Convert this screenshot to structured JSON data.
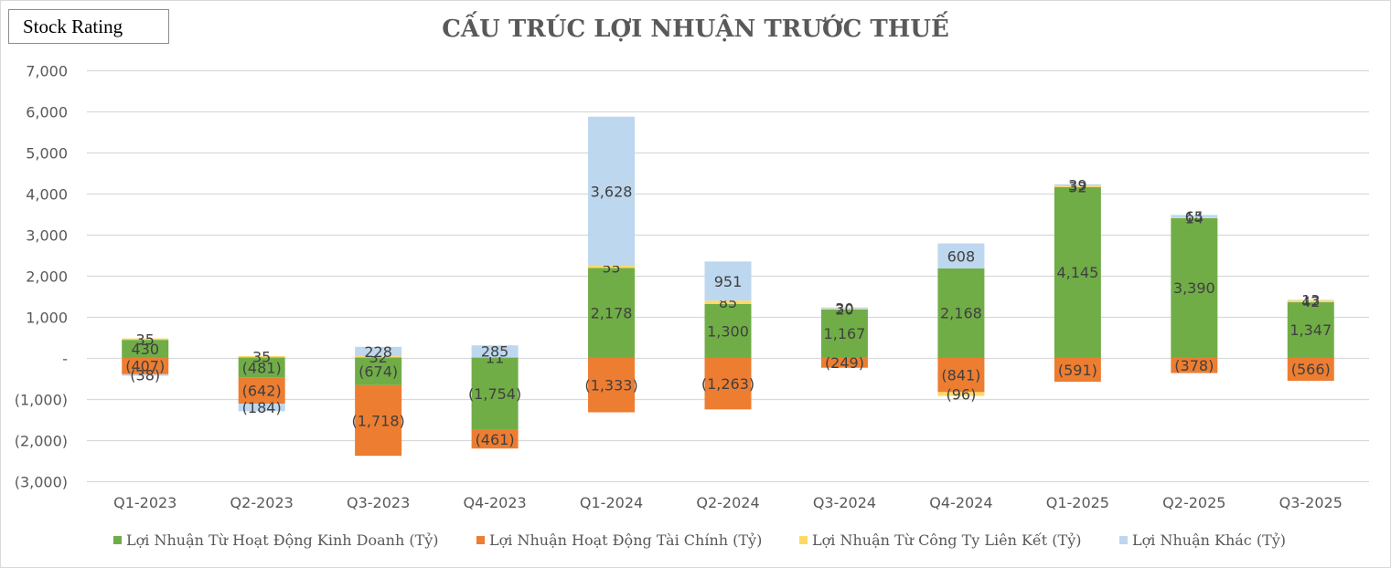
{
  "badge": {
    "label": "Stock Rating"
  },
  "chart_data": {
    "type": "bar",
    "stacked": true,
    "title": "CẤU TRÚC LỢI NHUẬN TRƯỚC THUẾ",
    "xlabel": "",
    "ylabel": "",
    "ylim": [
      -3000,
      7000
    ],
    "yticks": [
      7000,
      6000,
      5000,
      4000,
      3000,
      2000,
      1000,
      0,
      -1000,
      -2000,
      -3000
    ],
    "ytick_labels": [
      "7,000",
      "6,000",
      "5,000",
      "4,000",
      "3,000",
      "2,000",
      "1,000",
      "-",
      "(1,000)",
      "(2,000)",
      "(3,000)"
    ],
    "grid": true,
    "legend_position": "bottom",
    "categories": [
      "Q1-2023",
      "Q2-2023",
      "Q3-2023",
      "Q4-2023",
      "Q1-2024",
      "Q2-2024",
      "Q3-2024",
      "Q4-2024",
      "Q1-2025",
      "Q2-2025",
      "Q3-2025"
    ],
    "series": [
      {
        "name": "Lợi Nhuận Từ Hoạt Động Kinh Doanh (Tỷ)",
        "color": "#70ad47",
        "values": [
          430,
          -481,
          -674,
          -1754,
          2178,
          1300,
          1167,
          2168,
          4145,
          3390,
          1347
        ],
        "labels": [
          "430",
          "(481)",
          "(674)",
          "(1,754)",
          "2,178",
          "1,300",
          "1,167",
          "2,168",
          "4,145",
          "3,390",
          "1,347"
        ]
      },
      {
        "name": "Lợi Nhuận Hoạt Động Tài Chính (Tỷ)",
        "color": "#ed7d31",
        "values": [
          -407,
          -642,
          -1718,
          -461,
          -1333,
          -1263,
          -249,
          -841,
          -591,
          -378,
          -566
        ],
        "labels": [
          "(407)",
          "(642)",
          "(1,718)",
          "(461)",
          "(1,333)",
          "(1,263)",
          "(249)",
          "(841)",
          "(591)",
          "(378)",
          "(566)"
        ]
      },
      {
        "name": "Lợi Nhuận Từ Công Ty Liên Kết (Tỷ)",
        "color": "#ffd966",
        "values": [
          35,
          35,
          32,
          11,
          55,
          85,
          20,
          -96,
          32,
          14,
          42
        ],
        "labels": [
          "35",
          "35",
          "32",
          "11",
          "55",
          "85",
          "20",
          "(96)",
          "32",
          "14",
          "42"
        ]
      },
      {
        "name": "Lợi Nhuận Khác (Tỷ)",
        "color": "#bdd7ee",
        "values": [
          -38,
          -184,
          228,
          285,
          3628,
          951,
          30,
          608,
          39,
          65,
          13
        ],
        "labels": [
          "(38)",
          "(184)",
          "228",
          "285",
          "3,628",
          "951",
          "30",
          "608",
          "39",
          "65",
          "13"
        ]
      }
    ]
  }
}
